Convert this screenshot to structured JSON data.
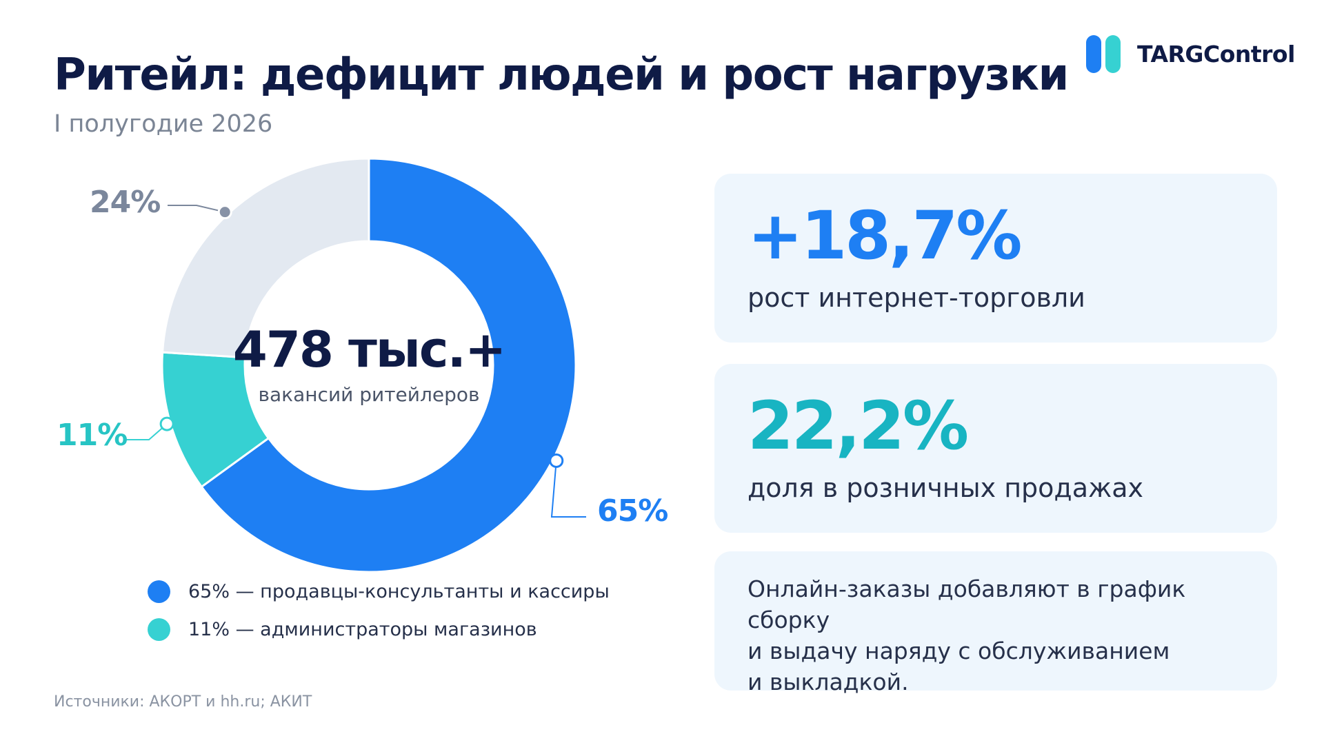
{
  "header": {
    "title": "Ритейл: дефицит людей и рост нагрузки",
    "subtitle": "I полугодие 2026"
  },
  "logo": {
    "text": "TARGControl",
    "colors": [
      "#1e7ff3",
      "#36d1d2"
    ]
  },
  "chart_data": {
    "type": "pie",
    "categories": [
      "продавцы-консультанты и кассиры",
      "администраторы магазинов",
      ""
    ],
    "values": [
      65,
      11,
      24
    ],
    "labels": [
      "65%",
      "11%",
      "24%"
    ],
    "colors": [
      "#1e7ff3",
      "#36d1d2",
      "#e3e9f1"
    ],
    "center_value": "478 тыс.+",
    "center_label": "вакансий ритейлеров",
    "donut": true
  },
  "legend": [
    {
      "text": "65% — продавцы-консультанты и кассиры",
      "color": "#1e7ff3"
    },
    {
      "text": "11% — администраторы магазинов",
      "color": "#36d1d2"
    }
  ],
  "cards": [
    {
      "value": "+18,7%",
      "label": "рост интернет-торговли",
      "color": "#1e7ff3"
    },
    {
      "value": "22,2%",
      "label": "доля в розничных продажах",
      "color": "#18b4c2"
    },
    {
      "text_lines": [
        "Онлайн-заказы добавляют в график сборку",
        "и выдачу наряду с обслуживанием",
        "и выкладкой."
      ]
    }
  ],
  "source": "Источники: АКОРТ и hh.ru; АКИТ"
}
